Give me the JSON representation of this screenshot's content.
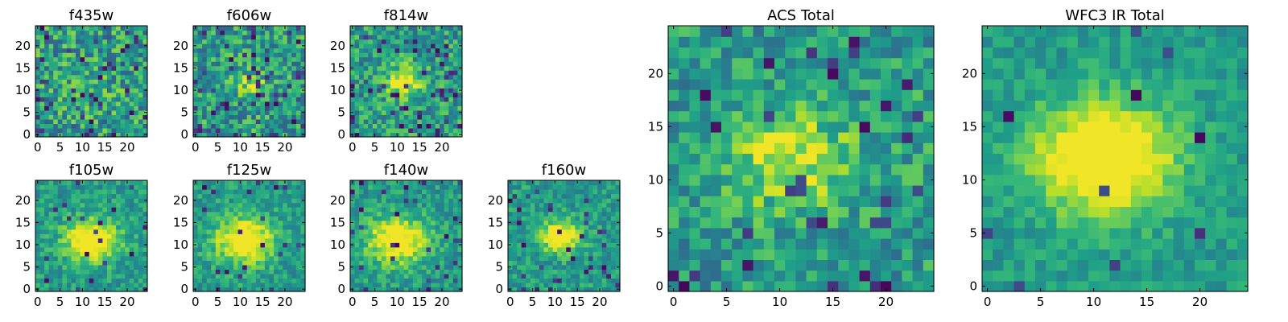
{
  "figure": {
    "background": "#ffffff",
    "colormap": "viridis"
  },
  "chart_data": [
    {
      "type": "heatmap",
      "title": "f435w",
      "grid": false,
      "size": 25,
      "xlim": [
        0,
        24
      ],
      "ylim": [
        0,
        24
      ],
      "xticks": [
        0,
        5,
        10,
        15,
        20
      ],
      "yticks": [
        0,
        5,
        10,
        15,
        20
      ],
      "center": [
        12,
        11
      ],
      "peak_strength": 0.05,
      "sigma": 4,
      "noise": 0.55,
      "dark_fraction": 0.06,
      "seed": 11
    },
    {
      "type": "heatmap",
      "title": "f606w",
      "grid": false,
      "size": 25,
      "xlim": [
        0,
        24
      ],
      "ylim": [
        0,
        24
      ],
      "xticks": [
        0,
        5,
        10,
        15,
        20
      ],
      "yticks": [
        0,
        5,
        10,
        15,
        20
      ],
      "center": [
        12,
        11
      ],
      "peak_strength": 0.2,
      "sigma": 3.5,
      "noise": 0.5,
      "dark_fraction": 0.08,
      "seed": 23
    },
    {
      "type": "heatmap",
      "title": "f814w",
      "grid": false,
      "size": 25,
      "xlim": [
        0,
        24
      ],
      "ylim": [
        0,
        24
      ],
      "xticks": [
        0,
        5,
        10,
        15,
        20
      ],
      "yticks": [
        0,
        5,
        10,
        15,
        20
      ],
      "center": [
        12,
        12
      ],
      "peak_strength": 0.45,
      "sigma": 3,
      "noise": 0.45,
      "dark_fraction": 0.08,
      "seed": 37
    },
    {
      "type": "heatmap",
      "title": "f105w",
      "grid": false,
      "size": 25,
      "xlim": [
        0,
        24
      ],
      "ylim": [
        0,
        24
      ],
      "xticks": [
        0,
        5,
        10,
        15,
        20
      ],
      "yticks": [
        0,
        5,
        10,
        15,
        20
      ],
      "center": [
        12,
        11
      ],
      "peak_strength": 0.65,
      "sigma": 4,
      "noise": 0.3,
      "dark_fraction": 0.03,
      "seed": 41
    },
    {
      "type": "heatmap",
      "title": "f125w",
      "grid": false,
      "size": 25,
      "xlim": [
        0,
        24
      ],
      "ylim": [
        0,
        24
      ],
      "xticks": [
        0,
        5,
        10,
        15,
        20
      ],
      "yticks": [
        0,
        5,
        10,
        15,
        20
      ],
      "center": [
        11,
        11
      ],
      "peak_strength": 0.6,
      "sigma": 4.5,
      "noise": 0.3,
      "dark_fraction": 0.04,
      "seed": 53
    },
    {
      "type": "heatmap",
      "title": "f140w",
      "grid": false,
      "size": 25,
      "xlim": [
        0,
        24
      ],
      "ylim": [
        0,
        24
      ],
      "xticks": [
        0,
        5,
        10,
        15,
        20
      ],
      "yticks": [
        0,
        5,
        10,
        15,
        20
      ],
      "center": [
        10,
        11
      ],
      "peak_strength": 0.6,
      "sigma": 4.5,
      "noise": 0.3,
      "dark_fraction": 0.04,
      "seed": 67
    },
    {
      "type": "heatmap",
      "title": "f160w",
      "grid": false,
      "size": 25,
      "xlim": [
        0,
        24
      ],
      "ylim": [
        0,
        24
      ],
      "xticks": [
        0,
        5,
        10,
        15,
        20
      ],
      "yticks": [
        0,
        5,
        10,
        15,
        20
      ],
      "center": [
        11,
        12
      ],
      "peak_strength": 0.6,
      "sigma": 3,
      "noise": 0.3,
      "dark_fraction": 0.06,
      "seed": 79
    },
    {
      "type": "heatmap",
      "title": "ACS Total",
      "grid": false,
      "size": 25,
      "xlim": [
        0,
        24
      ],
      "ylim": [
        0,
        24
      ],
      "xticks": [
        0,
        5,
        10,
        15,
        20
      ],
      "yticks": [
        0,
        5,
        10,
        15,
        20
      ],
      "center": [
        11,
        12
      ],
      "peak_strength": 0.4,
      "sigma": 4,
      "noise": 0.4,
      "dark_fraction": 0.05,
      "seed": 91
    },
    {
      "type": "heatmap",
      "title": "WFC3 IR Total",
      "grid": false,
      "size": 25,
      "xlim": [
        0,
        24
      ],
      "ylim": [
        0,
        24
      ],
      "xticks": [
        0,
        5,
        10,
        15,
        20
      ],
      "yticks": [
        0,
        5,
        10,
        15,
        20
      ],
      "center": [
        11,
        12
      ],
      "peak_strength": 0.7,
      "sigma": 4.5,
      "noise": 0.22,
      "dark_fraction": 0.03,
      "seed": 103
    }
  ]
}
